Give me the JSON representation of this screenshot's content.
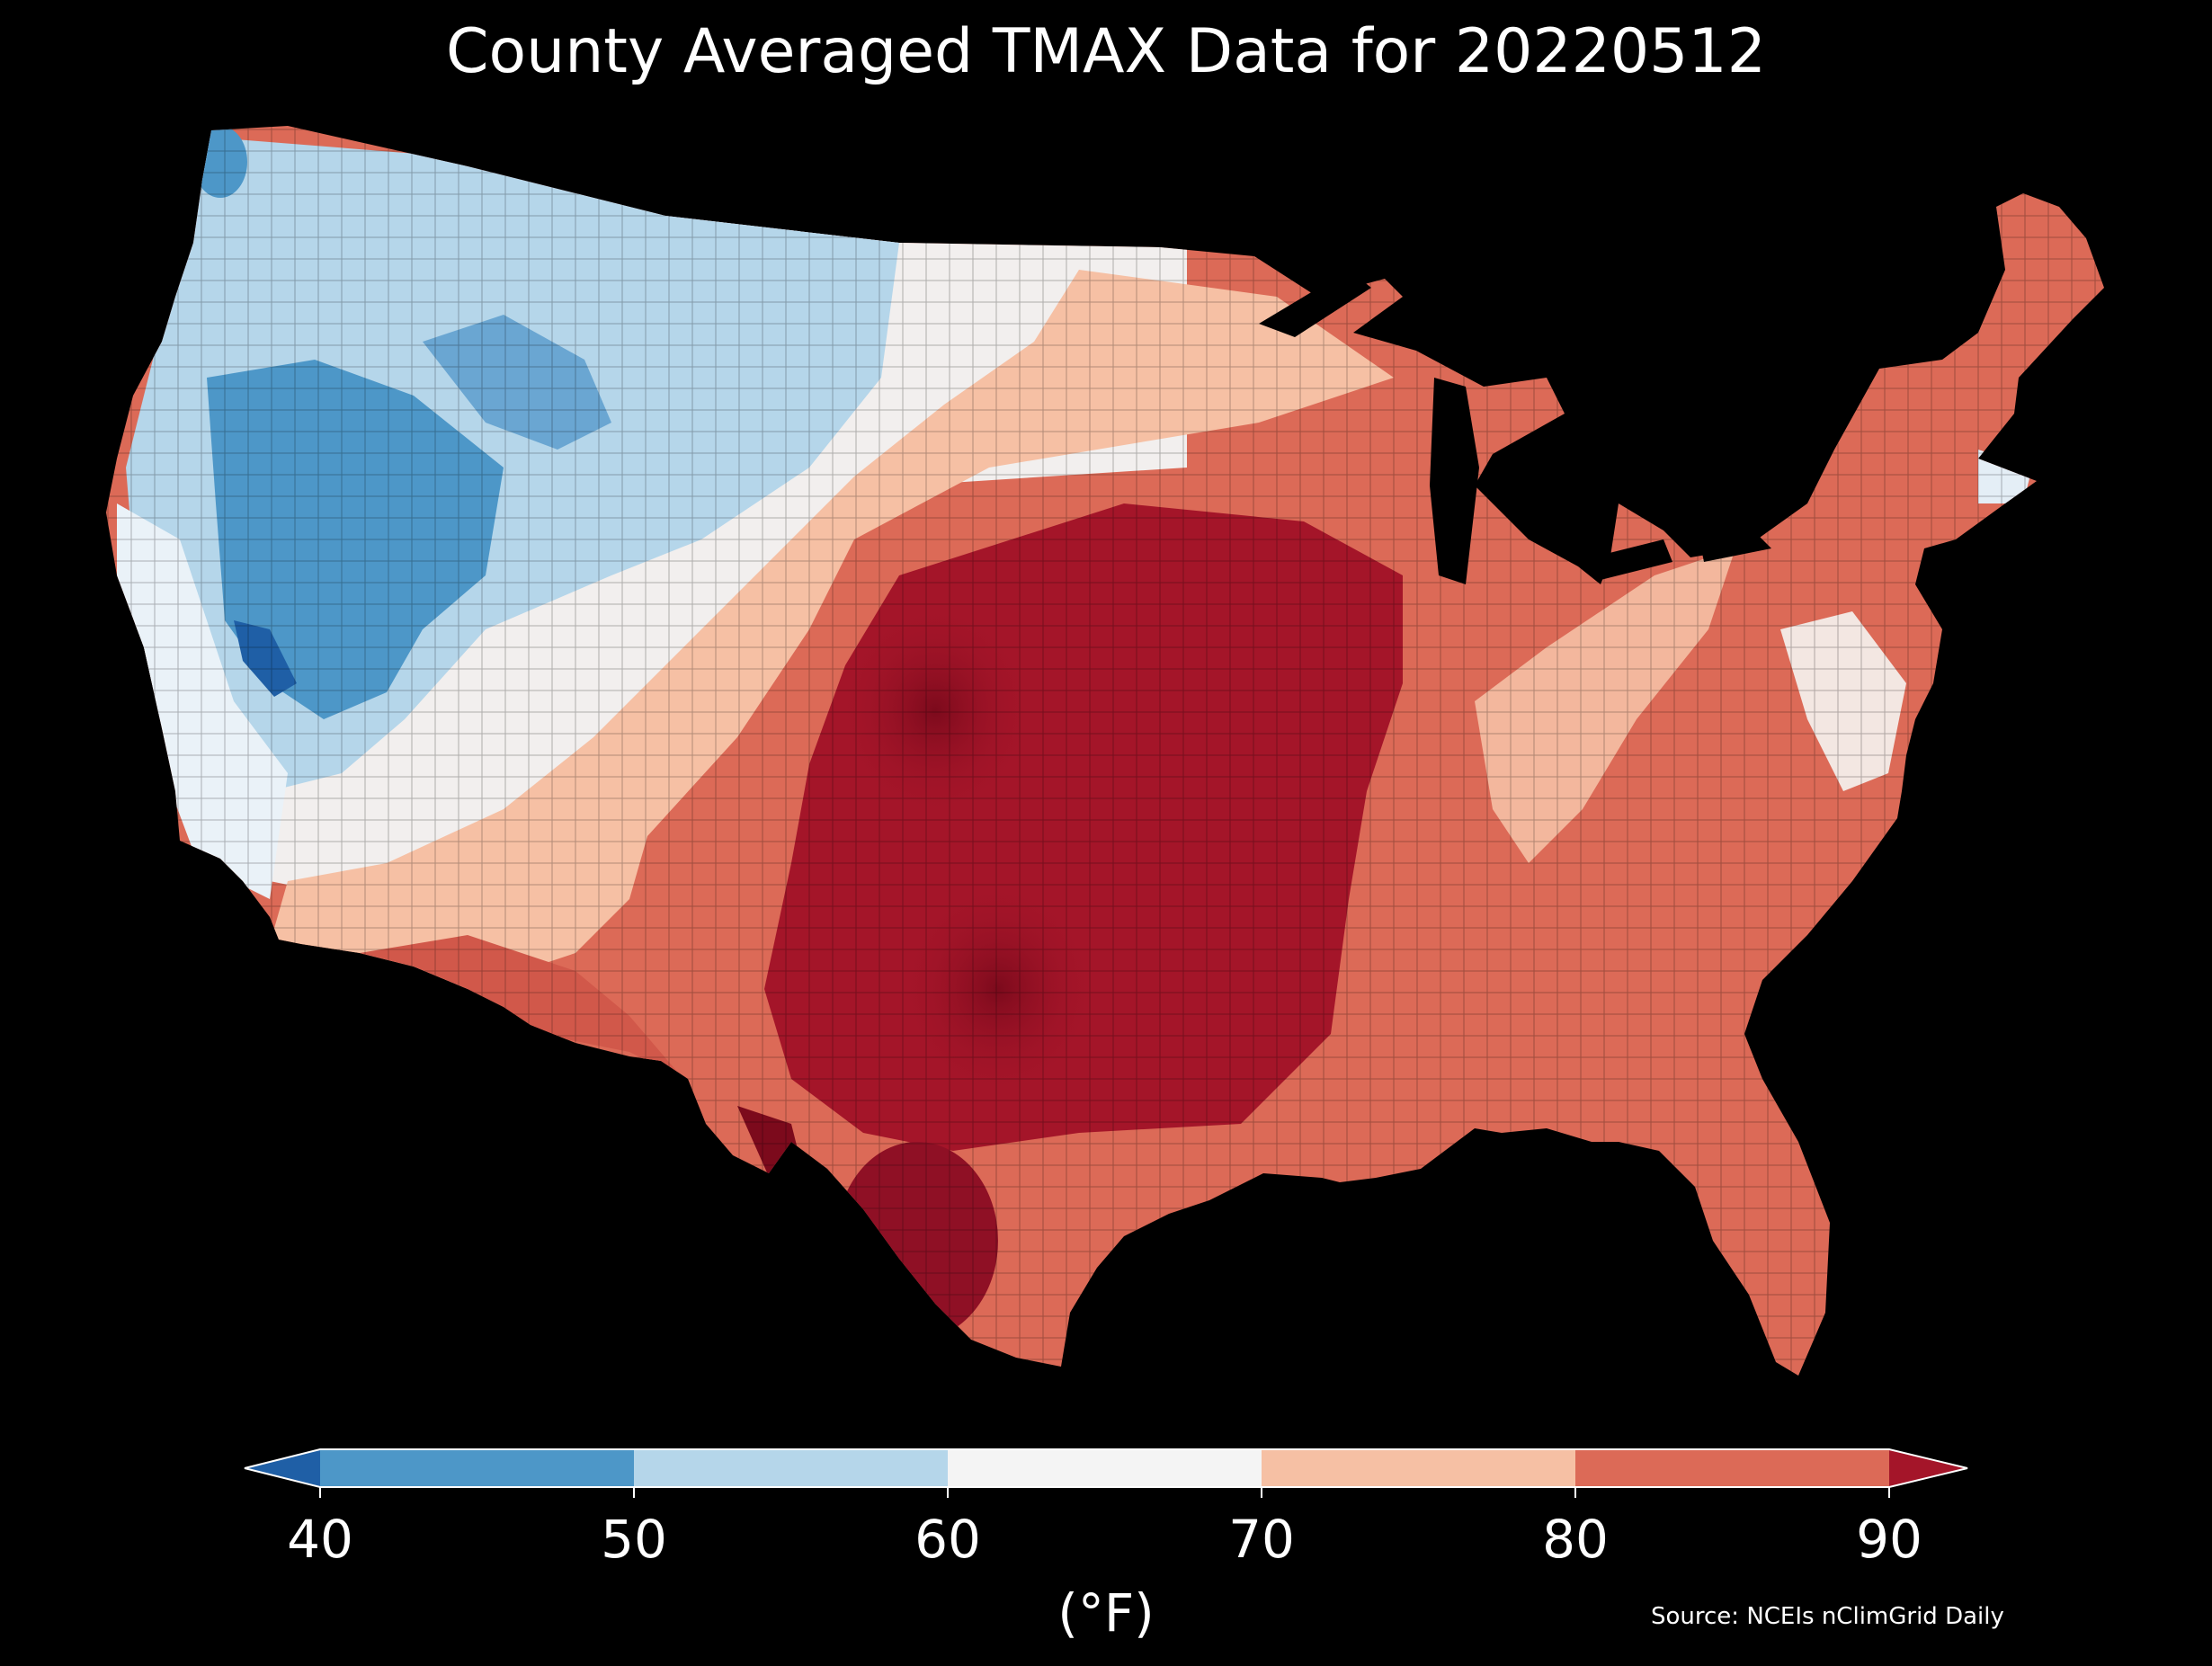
{
  "title": "County Averaged TMAX Data for 20220512",
  "colorbar": {
    "ticks": [
      "40",
      "50",
      "60",
      "70",
      "80",
      "90"
    ],
    "label": "(°F)",
    "bins": [
      {
        "range": "<40",
        "color": "#1f5fa6"
      },
      {
        "range": "40-50",
        "color": "#4d97c8"
      },
      {
        "range": "50-60",
        "color": "#b5d6ea"
      },
      {
        "range": "60-70",
        "color": "#f4f4f4"
      },
      {
        "range": "70-80",
        "color": "#f6c0a4"
      },
      {
        "range": "80-90",
        "color": "#dc6a57"
      },
      {
        "range": ">90",
        "color": "#a41529"
      }
    ]
  },
  "source": "Source: NCEIs nClimGrid Daily",
  "background": "#000000"
}
